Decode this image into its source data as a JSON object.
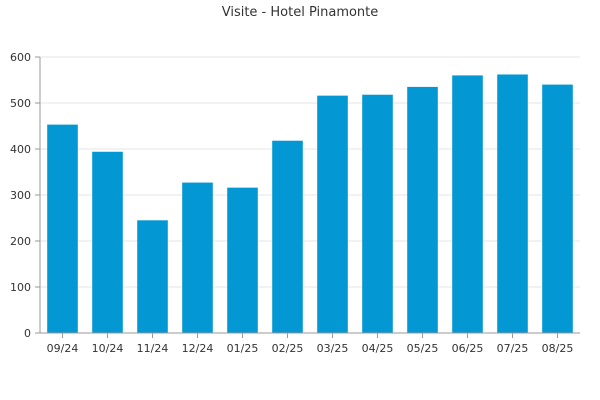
{
  "chart_data": {
    "type": "bar",
    "title": "Visite - Hotel Pinamonte",
    "xlabel": "",
    "ylabel": "",
    "categories": [
      "09/24",
      "10/24",
      "11/24",
      "12/24",
      "01/25",
      "02/25",
      "03/25",
      "04/25",
      "05/25",
      "06/25",
      "07/25",
      "08/25"
    ],
    "series": [
      {
        "values": [
          453,
          394,
          245,
          327,
          316,
          418,
          516,
          518,
          535,
          560,
          562,
          540
        ]
      }
    ],
    "ylim": [
      0,
      600
    ],
    "yticks": [
      0,
      100,
      200,
      300,
      400,
      500,
      600
    ],
    "grid": true,
    "legend": "none",
    "bar_color": "#0398d4"
  }
}
